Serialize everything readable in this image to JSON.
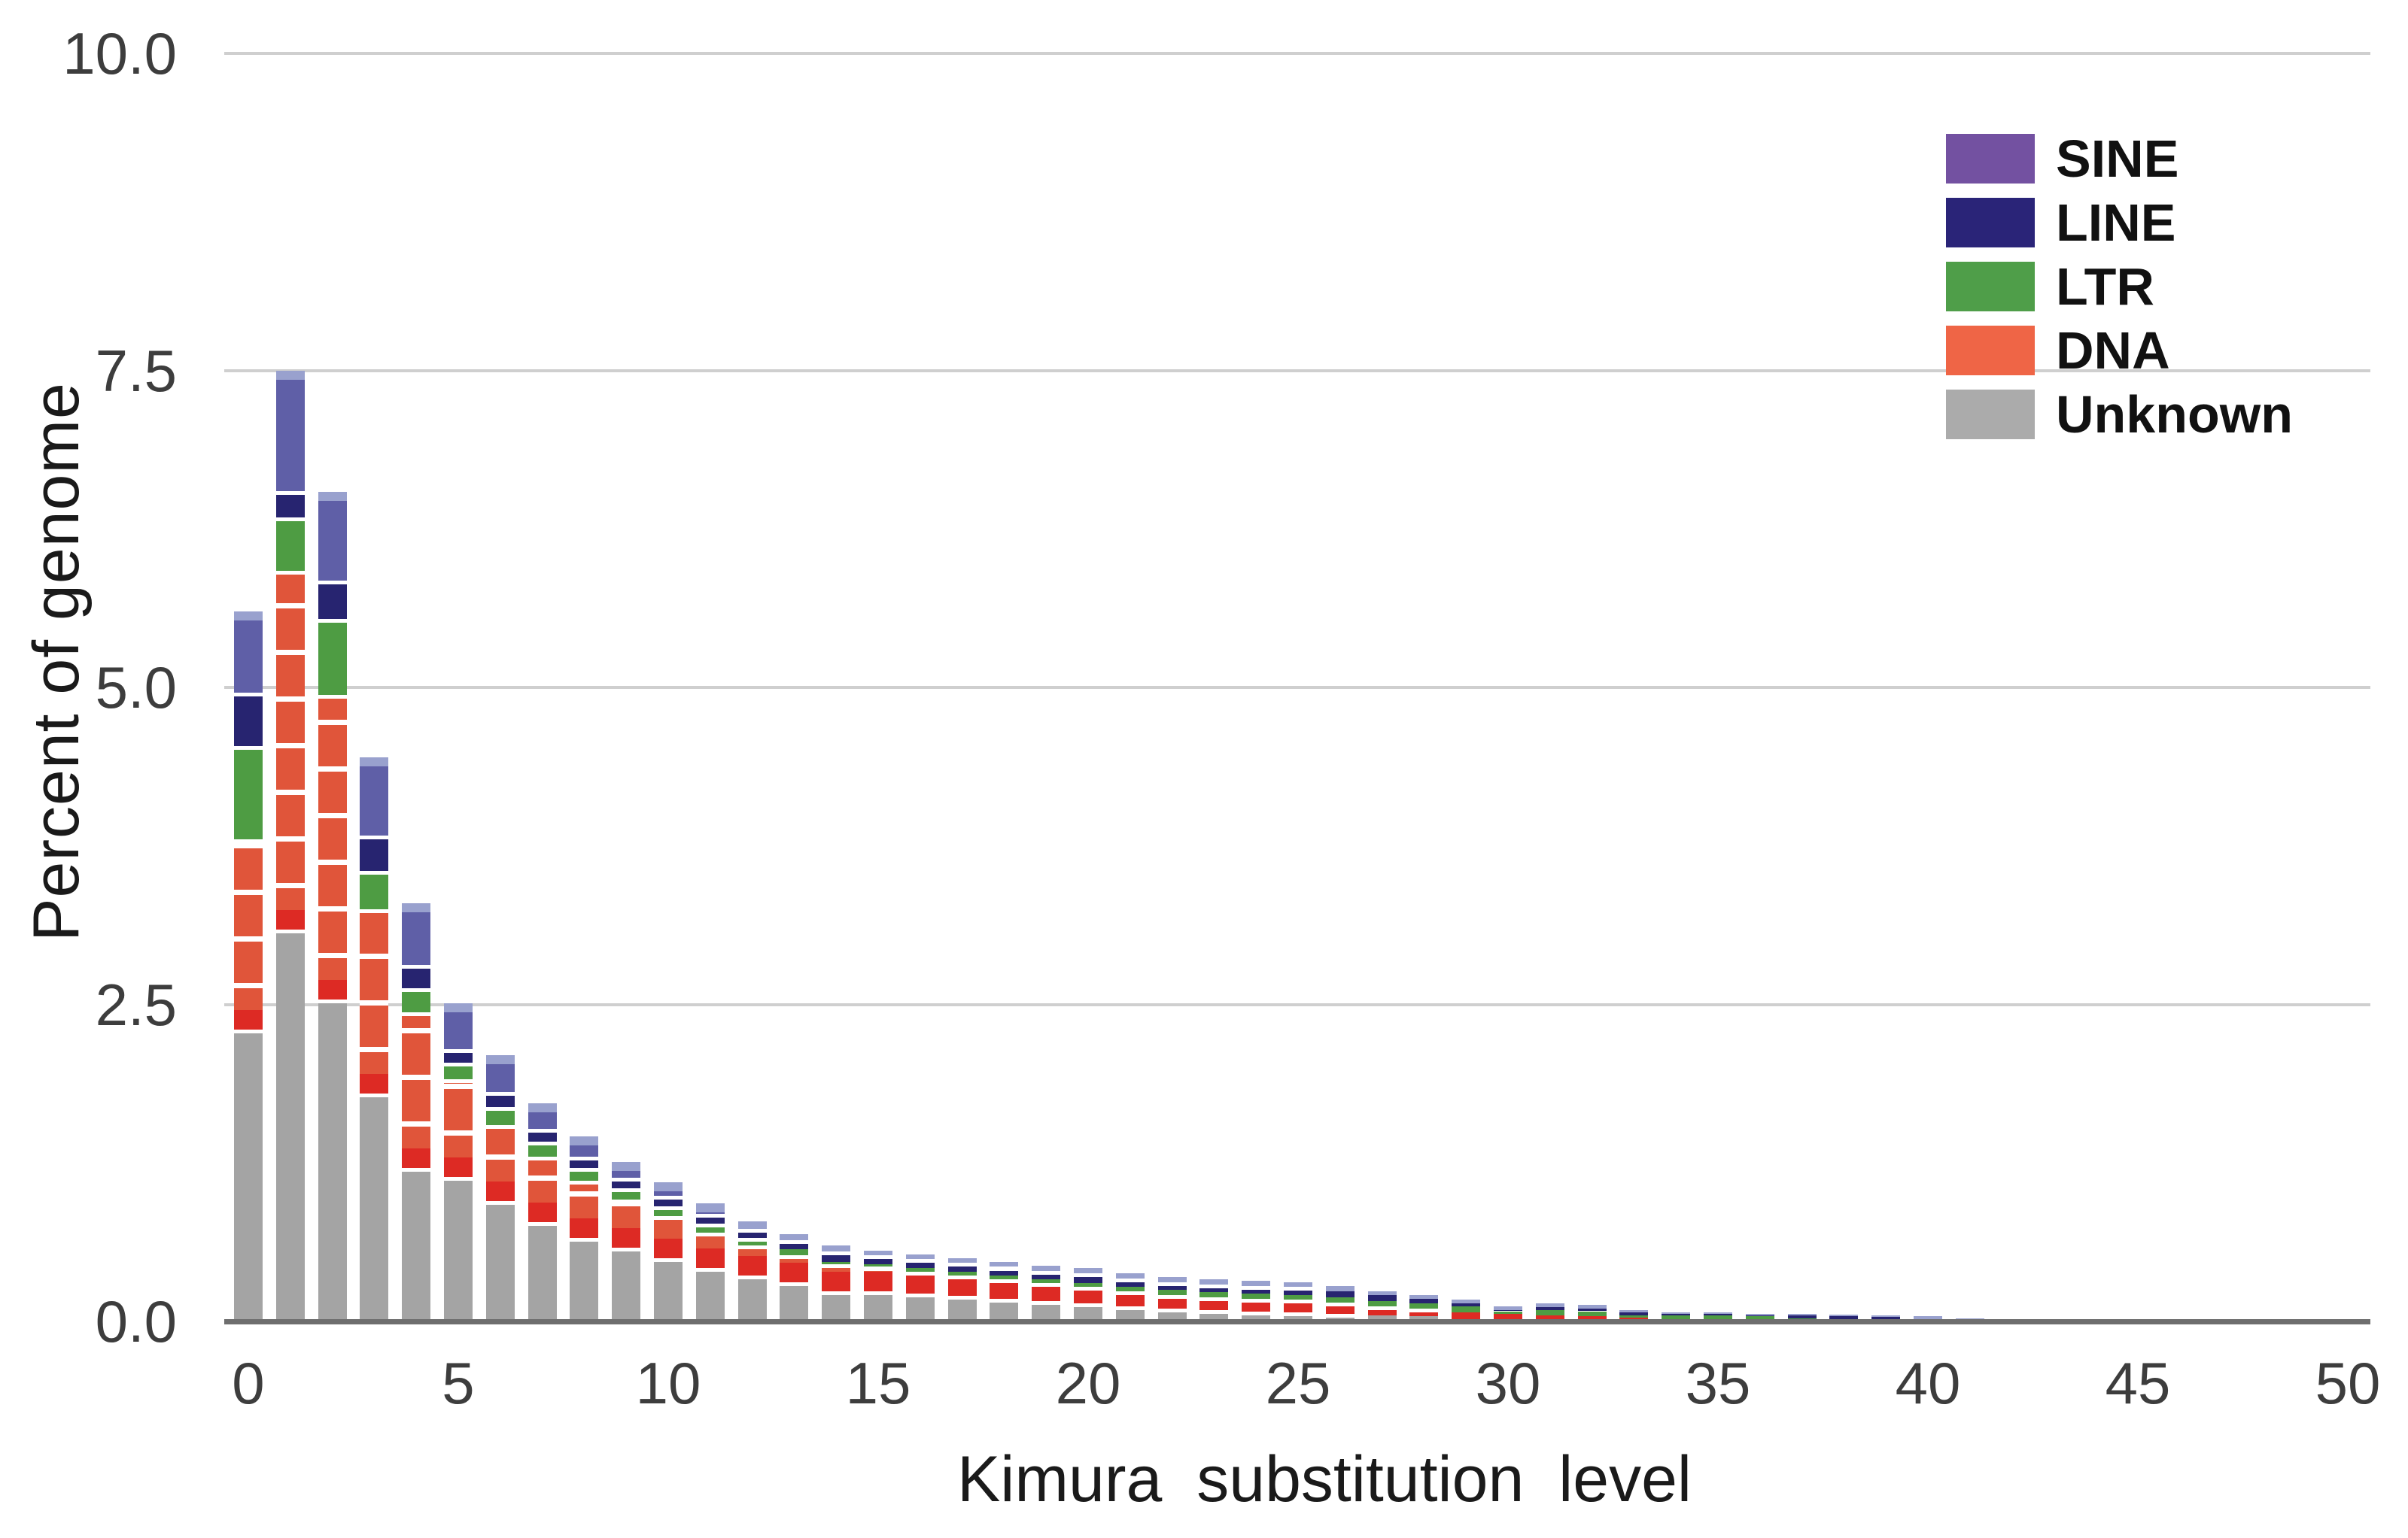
{
  "figure": {
    "y_axis_title": "Percent of genome",
    "x_axis_title": "Kimura substitution level"
  },
  "legend": {
    "items": [
      {
        "label": "SINE",
        "color": "#7351a1"
      },
      {
        "label": "LINE",
        "color": "#2a2478"
      },
      {
        "label": "LTR",
        "color": "#4f9e49"
      },
      {
        "label": "DNA",
        "color": "#ef6546"
      },
      {
        "label": "Unknown",
        "color": "#ababab"
      }
    ]
  },
  "chart_data": {
    "type": "bar",
    "stacked": true,
    "title": "",
    "xlabel": "Kimura substitution level",
    "ylabel": "Percent of genome",
    "xlim": [
      -1,
      51
    ],
    "ylim": [
      0,
      10
    ],
    "grid": true,
    "legend_position": "top-right",
    "categories": [
      0,
      1,
      2,
      3,
      4,
      5,
      6,
      7,
      8,
      9,
      10,
      11,
      12,
      13,
      14,
      15,
      16,
      17,
      18,
      19,
      20,
      21,
      22,
      23,
      24,
      25,
      26,
      27,
      28,
      29,
      30,
      31,
      32,
      33,
      34,
      35,
      36,
      37,
      38,
      39,
      40,
      41,
      42,
      43,
      44,
      45,
      46,
      47,
      48,
      49,
      50
    ],
    "xticks": [
      0,
      5,
      10,
      15,
      20,
      25,
      30,
      35,
      40,
      45,
      50
    ],
    "yticks": [
      0,
      2.5,
      5,
      7.5,
      10
    ],
    "ytick_labels": [
      "0.0",
      "2.5",
      "5.0",
      "7.5",
      "10.0"
    ],
    "series": [
      {
        "name": "Unknown",
        "color": "#a4a4a4",
        "values": [
          2.3,
          3.09,
          2.54,
          1.8,
          1.21,
          1.14,
          0.95,
          0.78,
          0.66,
          0.58,
          0.5,
          0.42,
          0.36,
          0.31,
          0.24,
          0.24,
          0.22,
          0.2,
          0.18,
          0.16,
          0.14,
          0.12,
          0.1,
          0.09,
          0.08,
          0.07,
          0.06,
          0.05,
          0.04,
          0.02,
          0.01,
          0.01,
          0.01,
          0.01,
          0.01,
          0.01,
          0.01,
          0.005,
          0.005,
          0.005,
          0.005,
          0.02,
          0.015,
          0.005,
          0,
          0,
          0,
          0,
          0,
          0,
          0
        ]
      },
      {
        "name": "DNA",
        "color": "#e0553a",
        "values": [
          1.5,
          2.83,
          2.4,
          1.45,
          1.23,
          0.77,
          0.6,
          0.52,
          0.45,
          0.38,
          0.33,
          0.28,
          0.24,
          0.21,
          0.21,
          0.19,
          0.17,
          0.16,
          0.15,
          0.14,
          0.13,
          0.12,
          0.11,
          0.1,
          0.1,
          0.1,
          0.09,
          0.07,
          0.06,
          0.05,
          0.05,
          0.04,
          0.03,
          0.02,
          0.01,
          0.01,
          0.01,
          0.01,
          0.005,
          0.005,
          0,
          0,
          0,
          0,
          0,
          0,
          0,
          0,
          0,
          0,
          0
        ]
      },
      {
        "name": "LTR",
        "color": "#4e9c43",
        "values": [
          0.74,
          0.42,
          0.6,
          0.3,
          0.19,
          0.13,
          0.14,
          0.12,
          0.1,
          0.09,
          0.08,
          0.07,
          0.06,
          0.05,
          0.02,
          0.02,
          0.03,
          0.03,
          0.03,
          0.03,
          0.03,
          0.03,
          0.04,
          0.04,
          0.04,
          0.04,
          0.04,
          0.04,
          0.04,
          0.05,
          0.02,
          0.04,
          0.04,
          0.02,
          0.03,
          0.03,
          0.02,
          0.01,
          0.01,
          0.01,
          0.005,
          0,
          0,
          0,
          0,
          0,
          0,
          0,
          0,
          0,
          0
        ]
      },
      {
        "name": "LINE",
        "color": "#272470",
        "values": [
          0.42,
          0.21,
          0.3,
          0.28,
          0.18,
          0.11,
          0.12,
          0.1,
          0.09,
          0.08,
          0.08,
          0.08,
          0.07,
          0.07,
          0.08,
          0.07,
          0.07,
          0.07,
          0.07,
          0.07,
          0.08,
          0.07,
          0.06,
          0.06,
          0.06,
          0.06,
          0.05,
          0.05,
          0.04,
          0.02,
          0.01,
          0.02,
          0.02,
          0.02,
          0.01,
          0.01,
          0.01,
          0.02,
          0.02,
          0.015,
          0.01,
          0,
          0,
          0,
          0,
          0,
          0,
          0,
          0,
          0,
          0
        ]
      },
      {
        "name": "SINE",
        "color": "#5f5fa7",
        "values": [
          0.64,
          0.95,
          0.7,
          0.62,
          0.49,
          0.36,
          0.29,
          0.2,
          0.16,
          0.13,
          0.11,
          0.08,
          0.06,
          0.05,
          0.05,
          0.04,
          0.04,
          0.04,
          0.04,
          0.04,
          0.04,
          0.04,
          0.04,
          0.04,
          0.04,
          0.04,
          0.04,
          0.03,
          0.03,
          0.03,
          0.03,
          0.03,
          0.03,
          0.02,
          0.01,
          0.01,
          0.01,
          0.015,
          0.015,
          0.015,
          0.02,
          0.005,
          0.005,
          0,
          0,
          0,
          0,
          0,
          0,
          0,
          0
        ]
      }
    ]
  }
}
